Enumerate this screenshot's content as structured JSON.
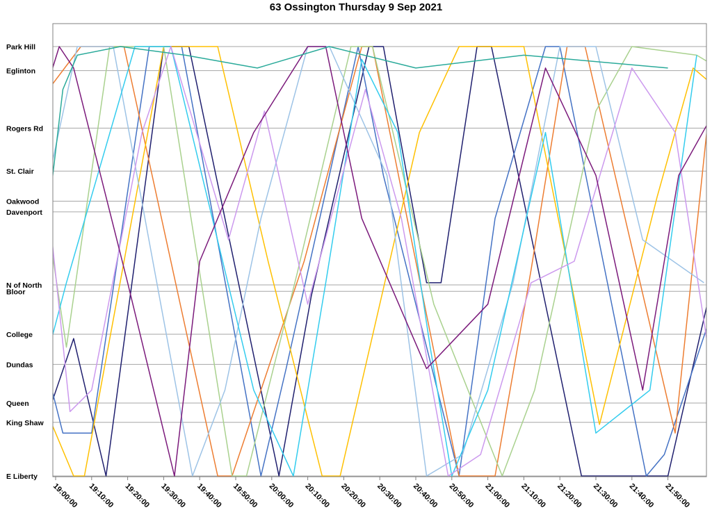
{
  "chart_data": {
    "type": "line",
    "title": "63 Ossington Thursday 9 Sep 2021",
    "xlabel": "",
    "ylabel": "",
    "x_tick_labels": [
      "19:00:00",
      "19:10:00",
      "19:20:00",
      "19:30:00",
      "19:40:00",
      "19:50:00",
      "20:00:00",
      "20:10:00",
      "20:20:00",
      "20:30:00",
      "20:40:00",
      "20:50:00",
      "21:00:00",
      "21:10:00",
      "21:20:00",
      "21:30:00",
      "21:40:00",
      "21:50:00"
    ],
    "xlim_minutes_after_19": [
      0,
      180
    ],
    "stops": [
      {
        "name": "Park Hill",
        "pos": 0.0
      },
      {
        "name": "Eglinton",
        "pos": 0.056
      },
      {
        "name": "Rogers Rd",
        "pos": 0.19
      },
      {
        "name": "St. Clair",
        "pos": 0.29
      },
      {
        "name": "Oakwood",
        "pos": 0.36
      },
      {
        "name": "Davenport",
        "pos": 0.385
      },
      {
        "name": "N of North",
        "pos": 0.555
      },
      {
        "name": "Bloor",
        "pos": 0.57
      },
      {
        "name": "College",
        "pos": 0.67
      },
      {
        "name": "Dundas",
        "pos": 0.74
      },
      {
        "name": "Queen",
        "pos": 0.83
      },
      {
        "name": "King Shaw",
        "pos": 0.875
      },
      {
        "name": "E Liberty",
        "pos": 1.0
      }
    ],
    "ylim_positions": [
      0,
      1
    ],
    "grid": true,
    "legend": "none",
    "series": [
      {
        "color": "#1f1f6e",
        "points": [
          [
            -8,
            1
          ],
          [
            5,
            0.68
          ],
          [
            14,
            1
          ],
          [
            30,
            0
          ],
          [
            37,
            0
          ],
          [
            62,
            1
          ],
          [
            71,
            0.58
          ],
          [
            87,
            0
          ],
          [
            91,
            0
          ],
          [
            103,
            0.55
          ],
          [
            107,
            0.55
          ],
          [
            117,
            0
          ],
          [
            121,
            0
          ],
          [
            146,
            1
          ],
          [
            170,
            1
          ],
          [
            185,
            0.45
          ]
        ]
      },
      {
        "color": "#4472c4",
        "points": [
          [
            -10,
            0.5
          ],
          [
            2,
            0.9
          ],
          [
            10,
            0.9
          ],
          [
            26,
            0
          ],
          [
            35,
            0
          ],
          [
            57,
            1
          ],
          [
            64,
            0.75
          ],
          [
            84,
            0
          ],
          [
            91,
            0.3
          ],
          [
            112,
            1
          ],
          [
            122,
            0.4
          ],
          [
            136,
            0
          ],
          [
            140,
            0
          ],
          [
            164,
            1
          ],
          [
            169,
            0.95
          ],
          [
            183,
            0.6
          ]
        ]
      },
      {
        "color": "#ed7d31",
        "points": [
          [
            -2,
            0.1
          ],
          [
            7,
            0
          ],
          [
            19,
            0
          ],
          [
            45,
            1
          ],
          [
            49,
            1
          ],
          [
            69,
            0.5
          ],
          [
            85,
            0
          ],
          [
            88,
            0
          ],
          [
            112,
            1
          ],
          [
            122,
            1
          ],
          [
            132,
            0.52
          ],
          [
            142,
            0
          ],
          [
            147,
            0
          ],
          [
            172,
            0.9
          ],
          [
            182,
            0.1
          ]
        ]
      },
      {
        "color": "#ffc000",
        "points": [
          [
            -5,
            0.8
          ],
          [
            5,
            1
          ],
          [
            8,
            1
          ],
          [
            30,
            0
          ],
          [
            45,
            0
          ],
          [
            59,
            0.5
          ],
          [
            74,
            1
          ],
          [
            79,
            1
          ],
          [
            101,
            0.2
          ],
          [
            112,
            0
          ],
          [
            130,
            0
          ],
          [
            151,
            0.88
          ],
          [
            167,
            0.35
          ],
          [
            177,
            0.05
          ],
          [
            184,
            0.1
          ]
        ]
      },
      {
        "color": "#a9d18e",
        "points": [
          [
            -6,
            0.2
          ],
          [
            3,
            0.7
          ],
          [
            15,
            0
          ],
          [
            30,
            0
          ],
          [
            49,
            1
          ],
          [
            53,
            1
          ],
          [
            67,
            0.53
          ],
          [
            82,
            0
          ],
          [
            88,
            0
          ],
          [
            105,
            0.6
          ],
          [
            124,
            1
          ],
          [
            133,
            0.8
          ],
          [
            150,
            0.15
          ],
          [
            160,
            0
          ],
          [
            178,
            0.02
          ],
          [
            184,
            0.05
          ]
        ]
      },
      {
        "color": "#9dc3e6",
        "points": [
          [
            -3,
            0.35
          ],
          [
            6,
            0
          ],
          [
            16,
            0
          ],
          [
            38,
            1
          ],
          [
            47,
            0.8
          ],
          [
            57,
            0.4
          ],
          [
            70,
            0
          ],
          [
            76,
            0
          ],
          [
            92,
            0.3
          ],
          [
            103,
            1
          ],
          [
            113,
            0.95
          ],
          [
            127,
            0.55
          ],
          [
            140,
            0
          ],
          [
            150,
            0
          ],
          [
            163,
            0.45
          ],
          [
            180,
            0.55
          ]
        ]
      },
      {
        "color": "#33ccee",
        "points": [
          [
            -8,
            0.9
          ],
          [
            3,
            0.55
          ],
          [
            22,
            0
          ],
          [
            32,
            0
          ],
          [
            55,
            0.8
          ],
          [
            66,
            1
          ],
          [
            75,
            0.55
          ],
          [
            85,
            0.03
          ],
          [
            95,
            0.2
          ],
          [
            104,
            0.7
          ],
          [
            110,
            1
          ],
          [
            120,
            0.8
          ],
          [
            136,
            0.2
          ],
          [
            150,
            0.9
          ],
          [
            165,
            0.8
          ],
          [
            178,
            0.02
          ]
        ]
      },
      {
        "color": "#cc99ee",
        "points": [
          [
            -6,
            0.05
          ],
          [
            4,
            0.85
          ],
          [
            10,
            0.8
          ],
          [
            24,
            0.2
          ],
          [
            32,
            0
          ],
          [
            48,
            0.45
          ],
          [
            58,
            0.15
          ],
          [
            70,
            0.6
          ],
          [
            86,
            0.1
          ],
          [
            96,
            0.4
          ],
          [
            109,
            1
          ],
          [
            118,
            0.95
          ],
          [
            132,
            0.55
          ],
          [
            144,
            0.5
          ],
          [
            160,
            0.05
          ],
          [
            172,
            0.2
          ],
          [
            182,
            0.75
          ]
        ]
      },
      {
        "color": "#7b1a7b",
        "points": [
          [
            -10,
            0.3
          ],
          [
            1,
            0
          ],
          [
            5,
            0.05
          ],
          [
            20,
            0.55
          ],
          [
            33,
            1
          ],
          [
            40,
            0.5
          ],
          [
            55,
            0.2
          ],
          [
            70,
            0
          ],
          [
            75,
            0
          ],
          [
            85,
            0.4
          ],
          [
            103,
            0.75
          ],
          [
            120,
            0.6
          ],
          [
            136,
            0.05
          ],
          [
            150,
            0.3
          ],
          [
            163,
            0.8
          ],
          [
            173,
            0.3
          ],
          [
            183,
            0.15
          ]
        ]
      },
      {
        "color": "#2aaa9a",
        "points": [
          [
            -5,
            0.6
          ],
          [
            2,
            0.1
          ],
          [
            6,
            0.02
          ],
          [
            18,
            0
          ],
          [
            36,
            0.02
          ],
          [
            56,
            0.05
          ],
          [
            76,
            0
          ],
          [
            100,
            0.05
          ],
          [
            130,
            0.02
          ],
          [
            170,
            0.05
          ]
        ]
      }
    ]
  }
}
